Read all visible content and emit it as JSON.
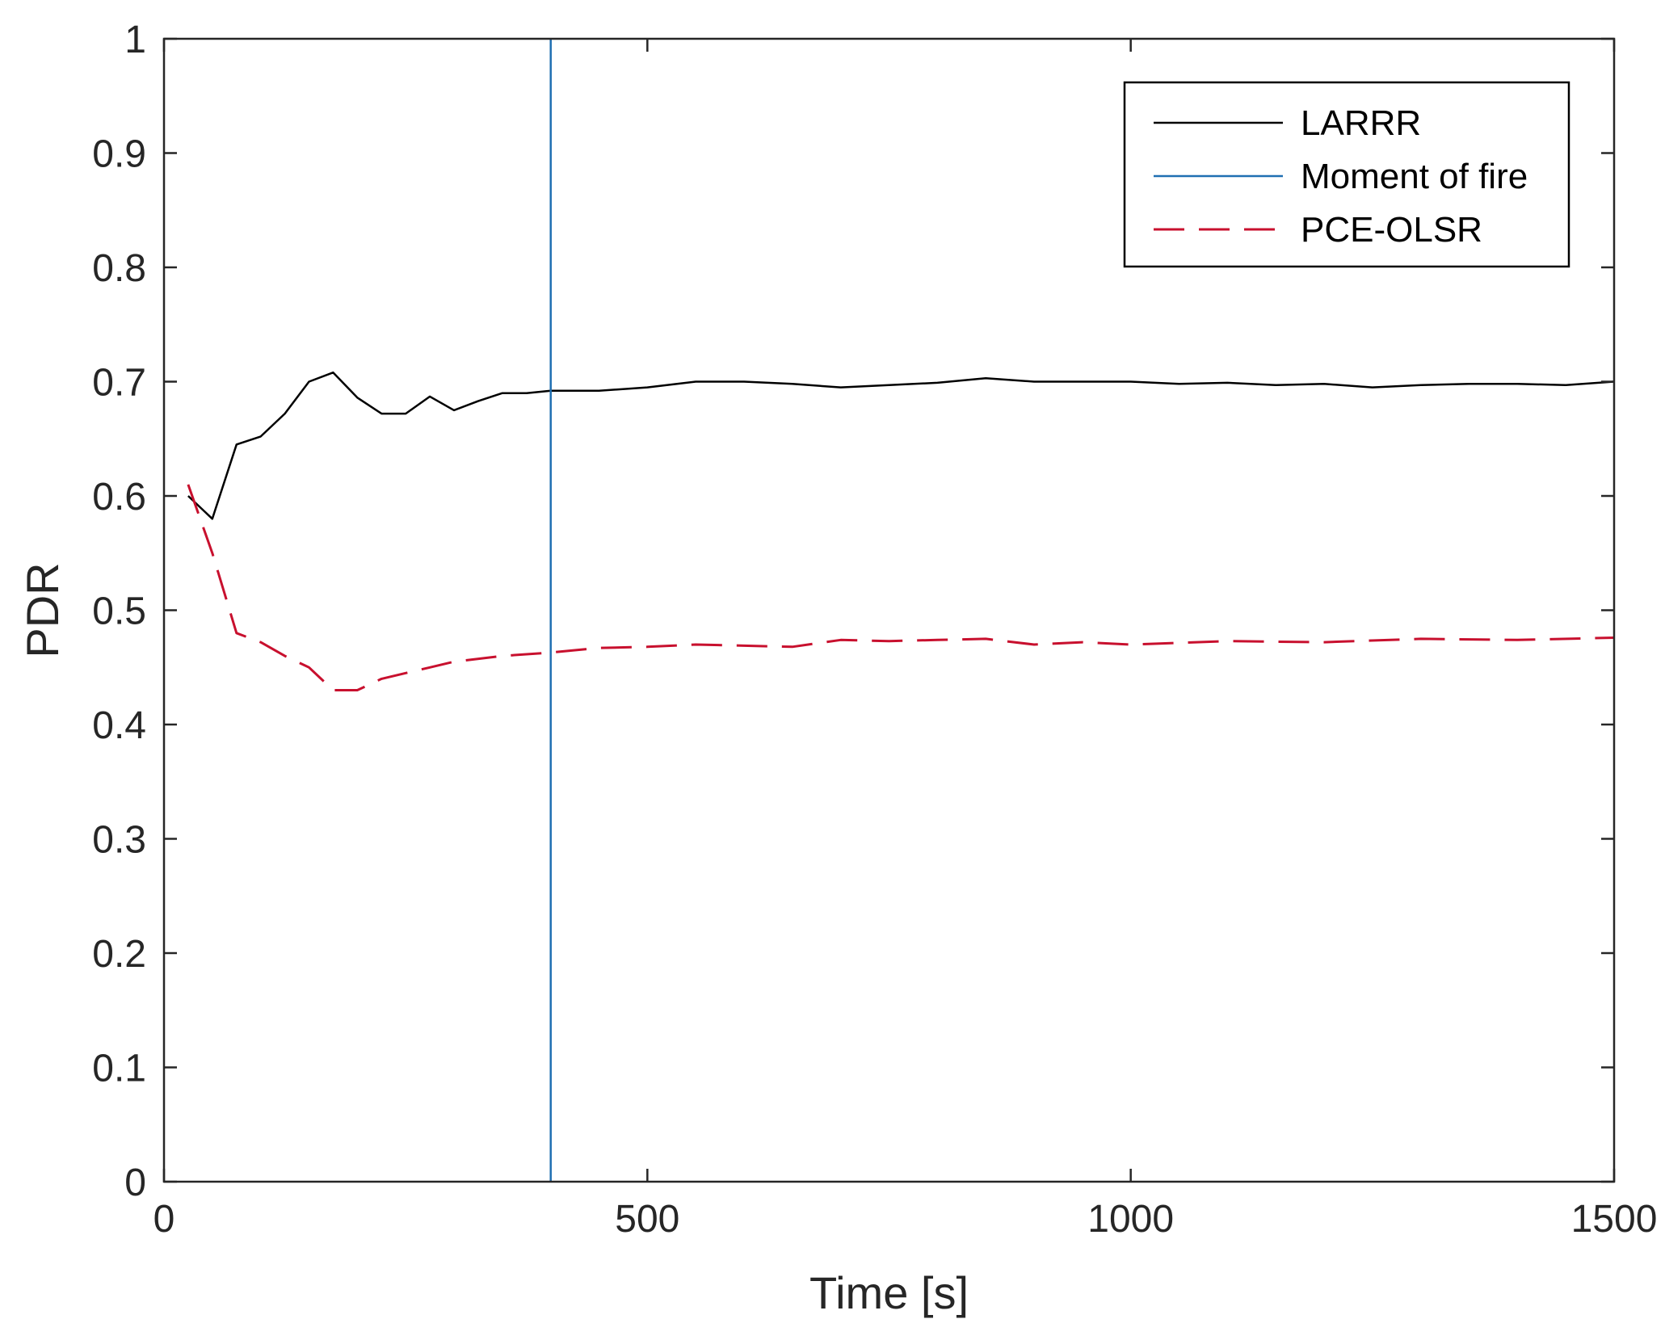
{
  "chart_data": {
    "type": "line",
    "title": "",
    "xlabel": "Time [s]",
    "ylabel": "PDR",
    "xlim": [
      0,
      1500
    ],
    "ylim": [
      0,
      1
    ],
    "xticks": [
      0,
      500,
      1000,
      1500
    ],
    "xtick_labels": [
      "0",
      "500",
      "1000",
      "1500"
    ],
    "yticks": [
      0,
      0.1,
      0.2,
      0.3,
      0.4,
      0.5,
      0.6,
      0.7,
      0.8,
      0.9,
      1
    ],
    "ytick_labels": [
      "0",
      "0.1",
      "0.2",
      "0.3",
      "0.4",
      "0.5",
      "0.6",
      "0.7",
      "0.8",
      "0.9",
      "1"
    ],
    "grid": false,
    "legend_position": "top-right",
    "series": [
      {
        "name": "LARRR",
        "color": "#000000",
        "style": "solid",
        "x": [
          25,
          50,
          75,
          100,
          125,
          150,
          175,
          200,
          225,
          250,
          275,
          300,
          325,
          350,
          375,
          400,
          450,
          500,
          550,
          600,
          650,
          700,
          750,
          800,
          850,
          900,
          950,
          1000,
          1050,
          1100,
          1150,
          1200,
          1250,
          1300,
          1350,
          1400,
          1450,
          1500
        ],
        "values": [
          0.6,
          0.58,
          0.645,
          0.652,
          0.672,
          0.7,
          0.708,
          0.686,
          0.672,
          0.672,
          0.687,
          0.675,
          0.683,
          0.69,
          0.69,
          0.692,
          0.692,
          0.695,
          0.7,
          0.7,
          0.698,
          0.695,
          0.697,
          0.699,
          0.703,
          0.7,
          0.7,
          0.7,
          0.698,
          0.699,
          0.697,
          0.698,
          0.695,
          0.697,
          0.698,
          0.698,
          0.697,
          0.7
        ]
      },
      {
        "name": "Moment of fire",
        "color": "#1f6fb2",
        "style": "solid",
        "x": [
          400,
          400
        ],
        "values": [
          0,
          1
        ]
      },
      {
        "name": "PCE-OLSR",
        "color": "#c8102e",
        "style": "dashed",
        "x": [
          25,
          50,
          75,
          100,
          125,
          150,
          175,
          200,
          225,
          250,
          275,
          300,
          350,
          400,
          450,
          500,
          550,
          600,
          650,
          700,
          750,
          800,
          850,
          900,
          950,
          1000,
          1100,
          1200,
          1300,
          1400,
          1500
        ],
        "values": [
          0.61,
          0.55,
          0.48,
          0.472,
          0.46,
          0.45,
          0.43,
          0.43,
          0.44,
          0.445,
          0.45,
          0.455,
          0.46,
          0.463,
          0.467,
          0.468,
          0.47,
          0.469,
          0.468,
          0.474,
          0.473,
          0.474,
          0.475,
          0.47,
          0.472,
          0.47,
          0.473,
          0.472,
          0.475,
          0.474,
          0.476
        ]
      }
    ]
  }
}
